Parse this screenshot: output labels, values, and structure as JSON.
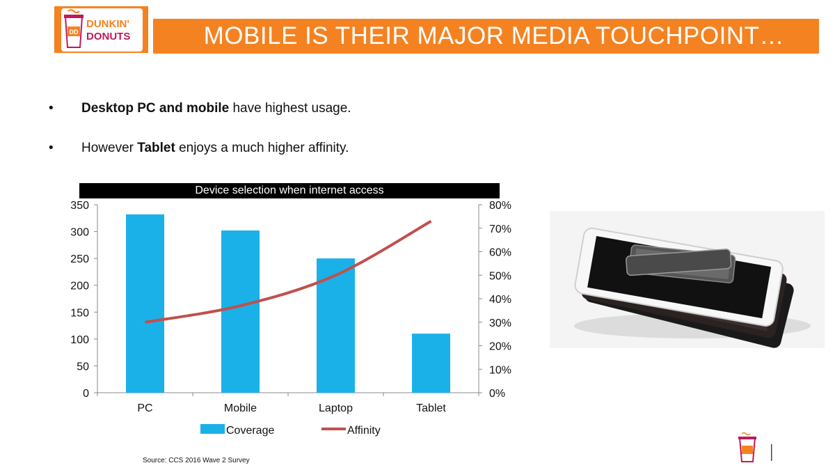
{
  "header": {
    "logo_text_line1": "DUNKIN'",
    "logo_text_line2": "DONUTS",
    "title": "MOBILE IS THEIR MAJOR MEDIA TOUCHPOINT…"
  },
  "bullets": [
    {
      "bold": "Desktop PC and mobile",
      "rest": " have highest  usage.",
      "prefix": ""
    },
    {
      "prefix": "However ",
      "bold": "Tablet",
      "rest": " enjoys a much higher affinity."
    }
  ],
  "bullet_symbol": "•",
  "source": "Source: CCS 2016 Wave 2 Survey",
  "colors": {
    "brand_orange": "#f58220",
    "bar": "#1ab1e8",
    "line": "#c0504d"
  },
  "chart_data": {
    "type": "bar",
    "title": "Device selection when internet access",
    "categories": [
      "PC",
      "Mobile",
      "Laptop",
      "Tablet"
    ],
    "series": [
      {
        "name": "Coverage",
        "type": "bar",
        "axis": "left",
        "values": [
          332,
          302,
          250,
          110
        ]
      },
      {
        "name": "Affinity",
        "type": "line",
        "axis": "right",
        "values": [
          0.3,
          0.37,
          0.5,
          0.73
        ]
      }
    ],
    "y_left": {
      "min": 0,
      "max": 350,
      "ticks": [
        0,
        50,
        100,
        150,
        200,
        250,
        300,
        350
      ]
    },
    "y_right": {
      "min": 0,
      "max": 0.8,
      "ticks": [
        0,
        0.1,
        0.2,
        0.3,
        0.4,
        0.5,
        0.6,
        0.7,
        0.8
      ],
      "format": "percent"
    },
    "legend": [
      "Coverage",
      "Affinity"
    ],
    "legend_position": "bottom"
  }
}
